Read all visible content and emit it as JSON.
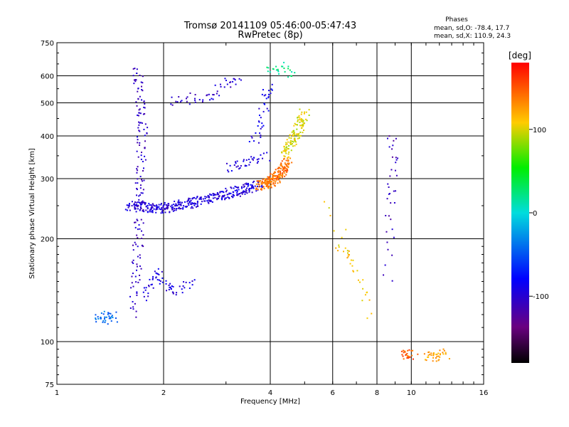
{
  "title": "Tromsø 20141109 05:46:00-05:47:43",
  "subtitle": "RwPretec (8p)",
  "stats": {
    "heading": "Phases",
    "line1": "mean, sd,O: -78.4, 17.7",
    "line2": "mean, sd,X: 110.9, 24.3"
  },
  "chart_data": {
    "type": "scatter",
    "title": "Tromsø 20141109 05:46:00-05:47:43",
    "subtitle": "RwPretec (8p)",
    "xlabel": "Frequency [MHz]",
    "ylabel": "Stationary phase Virtual Height [km]",
    "xscale": "log",
    "yscale": "log",
    "xlim": [
      1,
      16
    ],
    "ylim": [
      75,
      750
    ],
    "xticks": [
      1,
      2,
      4,
      6,
      8,
      10,
      16
    ],
    "yticks": [
      75,
      100,
      200,
      300,
      400,
      500,
      600,
      750
    ],
    "grid": true,
    "colorbar": {
      "label": "[deg]",
      "range": [
        -180,
        180
      ],
      "ticks": [
        100,
        0,
        -100
      ]
    },
    "series": [
      {
        "f": [
          1.6,
          1.75,
          1.9,
          2.1,
          2.3,
          2.5,
          2.8,
          3.1,
          3.4,
          3.7
        ],
        "h": [
          250,
          248,
          245,
          247,
          252,
          258,
          265,
          272,
          280,
          288
        ],
        "ph": -95
      },
      {
        "f": [
          3.75,
          3.9,
          4.05,
          4.2,
          4.35,
          4.5
        ],
        "h": [
          285,
          290,
          296,
          305,
          318,
          335
        ],
        "ph": 140
      },
      {
        "f": [
          4.4,
          4.6,
          4.8,
          5.0
        ],
        "h": [
          350,
          385,
          420,
          470
        ],
        "ph": 100
      },
      {
        "f": [
          1.65,
          1.7,
          1.72,
          1.75,
          1.68
        ],
        "h": [
          120,
          200,
          300,
          450,
          620
        ],
        "ph": -105
      },
      {
        "f": [
          1.75,
          1.85,
          1.95,
          2.05,
          2.2,
          2.4
        ],
        "h": [
          135,
          150,
          160,
          145,
          140,
          150
        ],
        "ph": -95
      },
      {
        "f": [
          1.3,
          1.35,
          1.4,
          1.45
        ],
        "h": [
          118,
          116,
          119,
          117
        ],
        "ph": -40
      },
      {
        "f": [
          2.1,
          2.4,
          2.7,
          3.0,
          3.3
        ],
        "h": [
          505,
          515,
          525,
          560,
          600
        ],
        "ph": -100
      },
      {
        "f": [
          3.0,
          3.3,
          3.6,
          3.9
        ],
        "h": [
          320,
          330,
          340,
          350
        ],
        "ph": -95
      },
      {
        "f": [
          3.6,
          3.75,
          3.85,
          3.95
        ],
        "h": [
          380,
          430,
          500,
          560
        ],
        "ph": -90
      },
      {
        "f": [
          4.0,
          4.3,
          4.6
        ],
        "h": [
          620,
          640,
          600
        ],
        "ph": 20
      },
      {
        "f": [
          9.5,
          9.8,
          10.1
        ],
        "h": [
          92,
          91,
          92
        ],
        "ph": 150
      },
      {
        "f": [
          11.0,
          11.5,
          12.0,
          12.5
        ],
        "h": [
          91,
          90,
          91,
          92
        ],
        "ph": 120
      },
      {
        "f": [
          8.6,
          8.7,
          8.9,
          8.8
        ],
        "h": [
          150,
          250,
          320,
          400
        ],
        "ph": -110
      },
      {
        "f": [
          6.2,
          6.8,
          7.6,
          5.8
        ],
        "h": [
          190,
          175,
          120,
          250
        ],
        "ph": 110
      }
    ]
  }
}
